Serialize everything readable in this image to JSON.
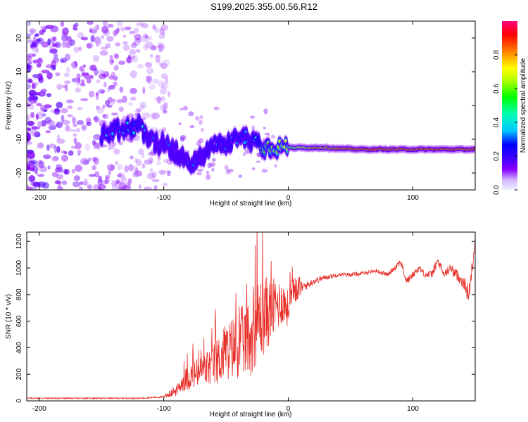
{
  "title": "S199.2025.355.00.56.R12",
  "colors": {
    "snr_line": "#e8302a",
    "axis": "#000000",
    "background": "#ffffff"
  },
  "chart_data": [
    {
      "type": "heatmap",
      "name": "spectrogram",
      "xlabel": "Height of straight line (km)",
      "ylabel": "Frequency (Hz)",
      "xlim": [
        -210,
        150
      ],
      "ylim": [
        -25,
        25
      ],
      "xticks": [
        -200,
        -100,
        0,
        100
      ],
      "xtick_labels": [
        "-200",
        "-100",
        "0",
        "100"
      ],
      "yticks": [
        -20,
        -10,
        0,
        10,
        20
      ],
      "ytick_labels": [
        "-20",
        "-10",
        "0",
        "10",
        "20"
      ],
      "colorbar": {
        "label": "Normalized spectral amplitude",
        "range": [
          0,
          1
        ],
        "ticks": [
          0.0,
          0.2,
          0.4,
          0.6,
          0.8
        ],
        "tick_labels": [
          "0.0",
          "0.2",
          "0.4",
          "0.6",
          "0.8"
        ],
        "colormap": [
          "#f0f0ff",
          "#8a00ff",
          "#3a00ff",
          "#0000ff",
          "#00c8ff",
          "#00ff80",
          "#7fff00",
          "#ffff00",
          "#ff8000",
          "#ff0000",
          "#ff0080"
        ]
      },
      "noise_region_x": [
        -210,
        -100
      ],
      "noise_region_y": [
        -25,
        25
      ],
      "ridge": {
        "x": [
          -150,
          -140,
          -130,
          -120,
          -110,
          -100,
          -90,
          -80,
          -70,
          -60,
          -50,
          -40,
          -30,
          -20,
          -10,
          0,
          10,
          20,
          30,
          40,
          60,
          80,
          100,
          120,
          140,
          150
        ],
        "frequency": [
          -9,
          -8,
          -7,
          -6,
          -10,
          -12,
          -14,
          -17,
          -16,
          -11,
          -12,
          -9,
          -10,
          -12,
          -12,
          -12.5,
          -12.5,
          -12.5,
          -12.5,
          -12.8,
          -13,
          -13,
          -13,
          -13,
          -13,
          -13
        ],
        "amplitude": [
          0.3,
          0.3,
          0.35,
          0.35,
          0.25,
          0.25,
          0.25,
          0.25,
          0.25,
          0.3,
          0.3,
          0.3,
          0.3,
          0.5,
          0.55,
          0.6,
          0.7,
          0.8,
          0.8,
          0.85,
          0.9,
          0.9,
          0.9,
          0.9,
          0.9,
          0.9
        ]
      }
    },
    {
      "type": "line",
      "name": "snr",
      "xlabel": "Height of straight line (km)",
      "ylabel": "SNR (10 * v/v)",
      "xlim": [
        -210,
        150
      ],
      "ylim": [
        0,
        1270
      ],
      "xticks": [
        -200,
        -100,
        0,
        100
      ],
      "xtick_labels": [
        "-200",
        "-100",
        "0",
        "100"
      ],
      "yticks": [
        0,
        200,
        400,
        600,
        800,
        1000,
        1200
      ],
      "ytick_labels": [
        "0",
        "200",
        "400",
        "600",
        "800",
        "1000",
        "1200"
      ],
      "series": [
        {
          "name": "SNR",
          "x": [
            -210,
            -180,
            -150,
            -120,
            -100,
            -90,
            -85,
            -80,
            -70,
            -60,
            -50,
            -40,
            -30,
            -25,
            -20,
            -15,
            -10,
            -5,
            0,
            5,
            10,
            15,
            20,
            30,
            40,
            50,
            60,
            70,
            80,
            90,
            95,
            100,
            105,
            110,
            115,
            120,
            125,
            130,
            135,
            140,
            145,
            150
          ],
          "y": [
            20,
            20,
            20,
            20,
            30,
            60,
            120,
            150,
            180,
            220,
            300,
            350,
            400,
            500,
            550,
            600,
            650,
            700,
            650,
            800,
            850,
            870,
            900,
            930,
            950,
            950,
            960,
            980,
            950,
            1050,
            900,
            950,
            1000,
            950,
            950,
            1050,
            950,
            1000,
            950,
            900,
            800,
            1200
          ],
          "spread": [
            10,
            10,
            10,
            10,
            15,
            40,
            80,
            110,
            140,
            180,
            240,
            290,
            330,
            350,
            350,
            280,
            230,
            190,
            150,
            130,
            90,
            60,
            50,
            40,
            30,
            30,
            30,
            30,
            30,
            60,
            60,
            50,
            50,
            50,
            60,
            80,
            60,
            80,
            80,
            100,
            150,
            60
          ]
        }
      ]
    }
  ]
}
